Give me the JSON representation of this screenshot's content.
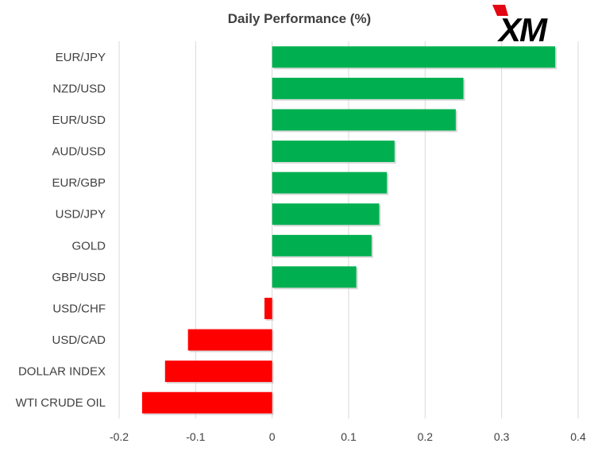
{
  "chart_data": {
    "type": "bar",
    "orientation": "horizontal",
    "title": "Daily Performance (%)",
    "categories": [
      "EUR/JPY",
      "NZD/USD",
      "EUR/USD",
      "AUD/USD",
      "EUR/GBP",
      "USD/JPY",
      "GOLD",
      "GBP/USD",
      "USD/CHF",
      "USD/CAD",
      "DOLLAR INDEX",
      "WTI CRUDE OIL"
    ],
    "values": [
      0.37,
      0.25,
      0.24,
      0.16,
      0.15,
      0.14,
      0.13,
      0.11,
      -0.01,
      -0.11,
      -0.14,
      -0.17
    ],
    "xlim": [
      -0.2,
      0.4
    ],
    "xticks": [
      -0.2,
      -0.1,
      0,
      0.1,
      0.2,
      0.3,
      0.4
    ],
    "xtick_labels": [
      "-0.2",
      "-0.1",
      "0",
      "0.1",
      "0.2",
      "0.3",
      "0.4"
    ],
    "grid": "vertical",
    "legend": "none",
    "colors": {
      "positive": "#00b050",
      "negative": "#ff0000",
      "grid": "#d9d9d9",
      "text": "#404040"
    }
  },
  "brand": {
    "logo_text": "XM",
    "logo_color": "#000000",
    "logo_accent": "#e30613"
  }
}
